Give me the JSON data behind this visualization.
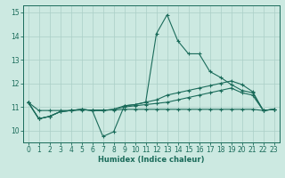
{
  "xlabel": "Humidex (Indice chaleur)",
  "xlim": [
    -0.5,
    23.5
  ],
  "ylim": [
    9.5,
    15.3
  ],
  "yticks": [
    10,
    11,
    12,
    13,
    14,
    15
  ],
  "xticks": [
    0,
    1,
    2,
    3,
    4,
    5,
    6,
    7,
    8,
    9,
    10,
    11,
    12,
    13,
    14,
    15,
    16,
    17,
    18,
    19,
    20,
    21,
    22,
    23
  ],
  "bg_color": "#cce9e1",
  "line_color": "#1a6b5a",
  "grid_color": "#aacfc7",
  "series": [
    {
      "x": [
        0,
        1,
        2,
        3,
        4,
        5,
        6,
        7,
        8,
        9,
        10,
        11,
        12,
        13,
        14,
        15,
        16,
        17,
        18,
        19,
        20,
        21,
        22,
        23
      ],
      "y": [
        11.2,
        10.5,
        10.6,
        10.8,
        10.85,
        10.9,
        10.85,
        9.75,
        9.95,
        11.05,
        11.1,
        11.2,
        14.1,
        14.9,
        13.8,
        13.25,
        13.25,
        12.5,
        12.25,
        11.95,
        11.7,
        11.6,
        10.85,
        10.9
      ]
    },
    {
      "x": [
        0,
        1,
        2,
        3,
        4,
        5,
        6,
        7,
        8,
        9,
        10,
        11,
        12,
        13,
        14,
        15,
        16,
        17,
        18,
        19,
        20,
        21,
        22,
        23
      ],
      "y": [
        11.2,
        10.5,
        10.6,
        10.8,
        10.85,
        10.9,
        10.85,
        10.85,
        10.9,
        11.05,
        11.1,
        11.2,
        11.3,
        11.5,
        11.6,
        11.7,
        11.8,
        11.9,
        12.0,
        12.1,
        11.95,
        11.65,
        10.85,
        10.9
      ]
    },
    {
      "x": [
        0,
        1,
        2,
        3,
        4,
        5,
        6,
        7,
        8,
        9,
        10,
        11,
        12,
        13,
        14,
        15,
        16,
        17,
        18,
        19,
        20,
        21,
        22,
        23
      ],
      "y": [
        11.2,
        10.5,
        10.6,
        10.8,
        10.85,
        10.9,
        10.85,
        10.85,
        10.9,
        11.0,
        11.05,
        11.1,
        11.15,
        11.2,
        11.3,
        11.4,
        11.5,
        11.6,
        11.7,
        11.8,
        11.6,
        11.5,
        10.85,
        10.9
      ]
    },
    {
      "x": [
        0,
        1,
        2,
        3,
        4,
        5,
        6,
        7,
        8,
        9,
        10,
        11,
        12,
        13,
        14,
        15,
        16,
        17,
        18,
        19,
        20,
        21,
        22,
        23
      ],
      "y": [
        11.2,
        10.85,
        10.85,
        10.85,
        10.85,
        10.87,
        10.87,
        10.87,
        10.87,
        10.9,
        10.9,
        10.9,
        10.9,
        10.9,
        10.9,
        10.9,
        10.9,
        10.9,
        10.9,
        10.9,
        10.9,
        10.9,
        10.85,
        10.9
      ]
    }
  ]
}
